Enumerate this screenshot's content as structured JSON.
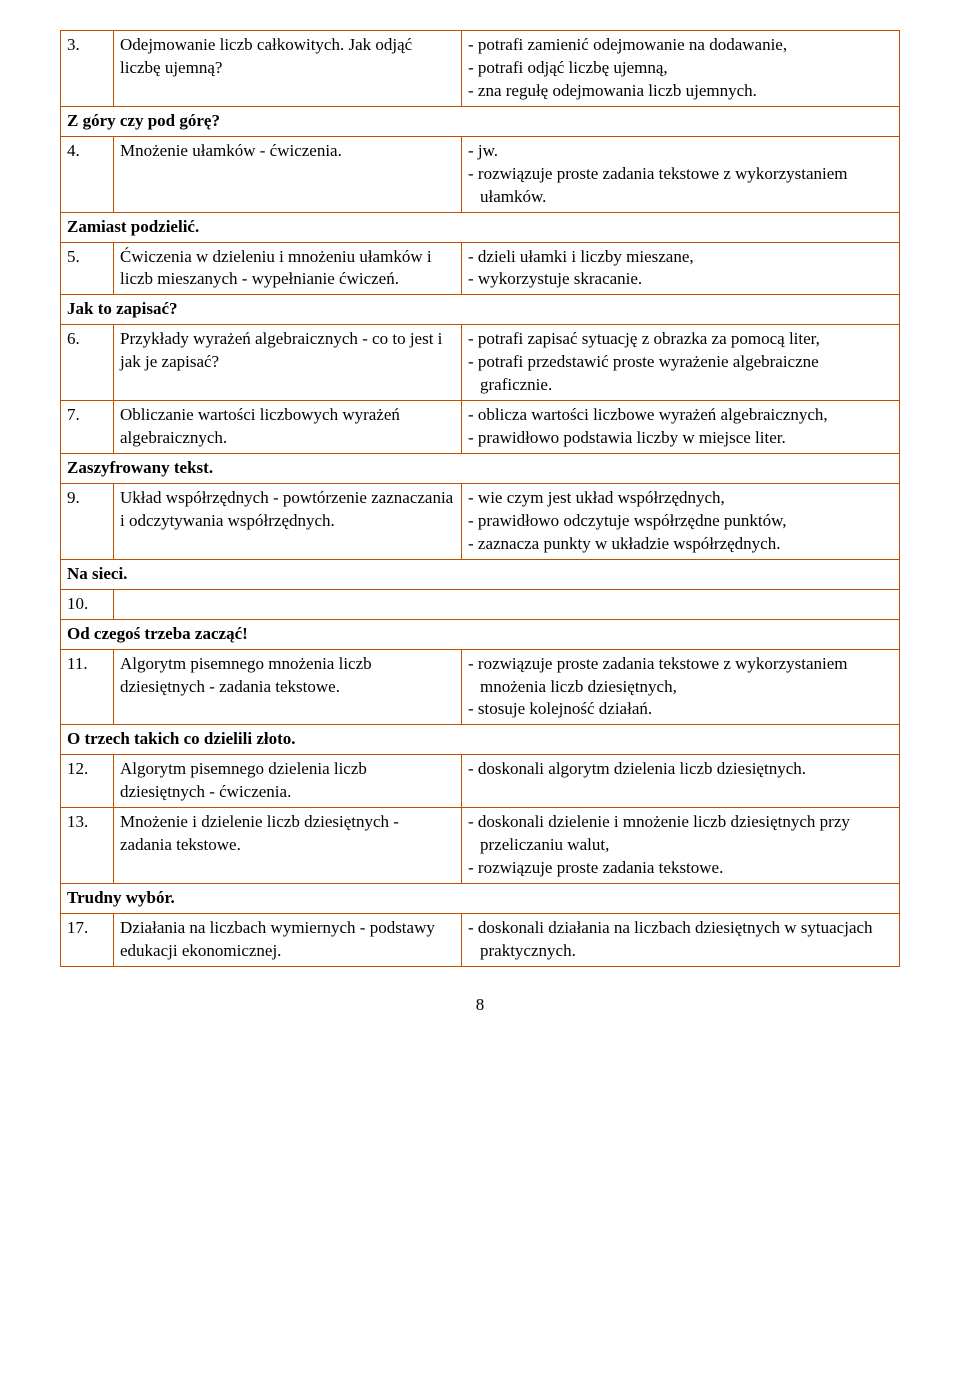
{
  "rows": [
    {
      "type": "item",
      "num": "3.",
      "left": "Odejmowanie liczb całkowitych. Jak odjąć liczbę ujemną?",
      "right": [
        "- potrafi zamienić odejmowanie na dodawanie,",
        "- potrafi odjąć liczbę ujemną,",
        "- zna regułę odejmowania liczb ujemnych."
      ]
    },
    {
      "type": "section",
      "text": "Z góry czy pod górę?"
    },
    {
      "type": "item",
      "num": "4.",
      "left": "Mnożenie ułamków - ćwiczenia.",
      "right": [
        "- jw.",
        "- rozwiązuje proste zadania tekstowe z wykorzystaniem ułamków."
      ]
    },
    {
      "type": "section",
      "text": "Zamiast podzielić."
    },
    {
      "type": "item",
      "num": "5.",
      "left": "Ćwiczenia w dzieleniu i mnożeniu ułamków i liczb mieszanych - wypełnianie ćwiczeń.",
      "right": [
        "- dzieli ułamki i liczby mieszane,",
        "- wykorzystuje skracanie."
      ]
    },
    {
      "type": "section",
      "text": "Jak to zapisać?"
    },
    {
      "type": "item",
      "num": "6.",
      "left": "Przykłady wyrażeń algebraicznych - co to jest i jak je zapisać?",
      "right": [
        "- potrafi zapisać sytuację z obrazka za pomocą liter,",
        "- potrafi przedstawić proste wyrażenie algebraiczne graficznie."
      ]
    },
    {
      "type": "item",
      "num": "7.",
      "left": "Obliczanie wartości liczbowych wyrażeń algebraicznych.",
      "right": [
        "- oblicza wartości liczbowe wyrażeń algebraicznych,",
        "- prawidłowo podstawia liczby w miejsce liter."
      ]
    },
    {
      "type": "section",
      "text": "Zaszyfrowany tekst."
    },
    {
      "type": "item",
      "num": "9.",
      "left": "Układ współrzędnych - powtórzenie zaznaczania i odczytywania współrzędnych.",
      "right": [
        "- wie czym jest układ współrzędnych,",
        "- prawidłowo odczytuje współrzędne punktów,",
        "- zaznacza punkty w układzie współrzędnych."
      ]
    },
    {
      "type": "section",
      "text": "Na sieci."
    },
    {
      "type": "empty",
      "num": "10."
    },
    {
      "type": "section",
      "text": "Od czegoś trzeba zacząć!"
    },
    {
      "type": "item",
      "num": "11.",
      "left": "Algorytm pisemnego mnożenia liczb dziesiętnych - zadania tekstowe.",
      "right": [
        "- rozwiązuje proste zadania tekstowe z wykorzystaniem mnożenia liczb dziesiętnych,",
        "- stosuje kolejność działań."
      ]
    },
    {
      "type": "section",
      "text": "O trzech takich co dzielili złoto."
    },
    {
      "type": "item",
      "num": "12.",
      "left": "Algorytm pisemnego dzielenia liczb dziesiętnych - ćwiczenia.",
      "right": [
        "- doskonali algorytm dzielenia liczb dziesiętnych."
      ]
    },
    {
      "type": "item",
      "num": "13.",
      "left": "Mnożenie i dzielenie liczb dziesiętnych - zadania tekstowe.",
      "right": [
        "- doskonali dzielenie i mnożenie liczb dziesiętnych przy przeliczaniu walut,",
        "- rozwiązuje proste zadania tekstowe."
      ]
    },
    {
      "type": "section",
      "text": "Trudny wybór."
    },
    {
      "type": "item",
      "num": "17.",
      "left": "Działania na liczbach wymiernych - podstawy edukacji ekonomicznej.",
      "right": [
        "- doskonali działania na liczbach dziesiętnych w sytuacjach praktycznych."
      ]
    }
  ],
  "pageNumber": "8"
}
